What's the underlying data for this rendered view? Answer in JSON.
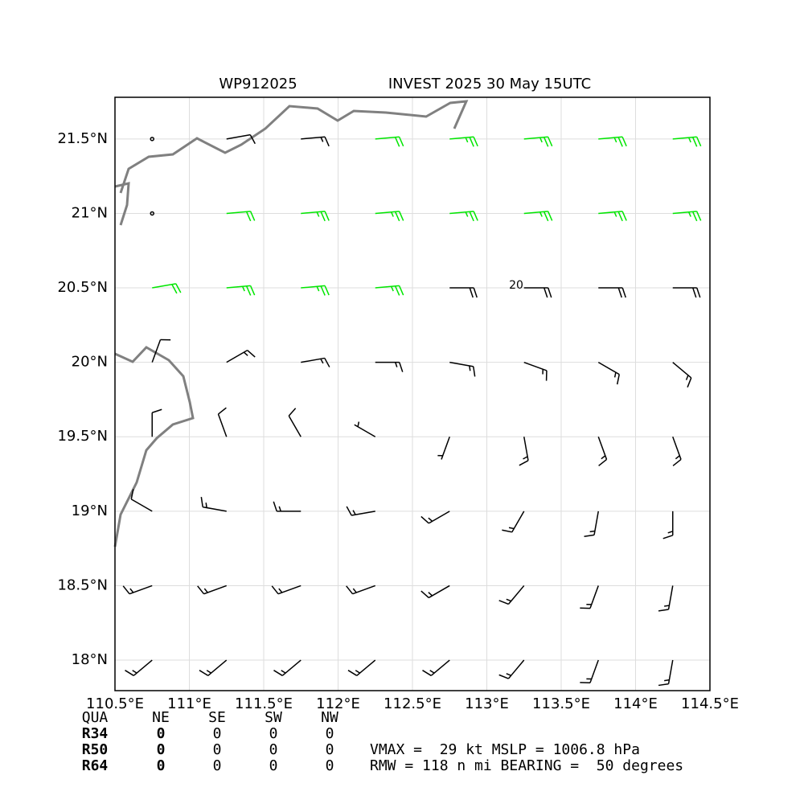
{
  "chart_data": {
    "type": "barbs",
    "storm_id": "WP912025",
    "title": "INVEST 2025 30 May 15UTC",
    "xlim": [
      110.5,
      114.5
    ],
    "ylim": [
      17.795,
      21.78
    ],
    "xticks": [
      {
        "value": 110.5,
        "label": "110.5°E"
      },
      {
        "value": 111,
        "label": "111°E"
      },
      {
        "value": 111.5,
        "label": "111.5°E"
      },
      {
        "value": 112,
        "label": "112°E"
      },
      {
        "value": 112.5,
        "label": "112.5°E"
      },
      {
        "value": 113,
        "label": "113°E"
      },
      {
        "value": 113.5,
        "label": "113.5°E"
      },
      {
        "value": 114,
        "label": "114°E"
      },
      {
        "value": 114.5,
        "label": "114.5°E"
      }
    ],
    "yticks": [
      {
        "value": 18,
        "label": "18°N"
      },
      {
        "value": 18.5,
        "label": "18.5°N"
      },
      {
        "value": 19,
        "label": "19°N"
      },
      {
        "value": 19.5,
        "label": "19.5°N"
      },
      {
        "value": 20,
        "label": "20°N"
      },
      {
        "value": 20.5,
        "label": "20.5°N"
      },
      {
        "value": 21,
        "label": "21°N"
      },
      {
        "value": 21.5,
        "label": "21.5°N"
      }
    ],
    "grid": true,
    "x": [
      110.75,
      111.25,
      111.75,
      112.25,
      112.75,
      113.25,
      113.75,
      114.25
    ],
    "y": [
      21.5,
      21.0,
      20.5,
      20.0,
      19.5,
      19.0,
      18.5,
      18.0
    ],
    "speed": [
      [
        0,
        10,
        15,
        20,
        25,
        25,
        25,
        25
      ],
      [
        0,
        20,
        25,
        25,
        25,
        25,
        25,
        25
      ],
      [
        20,
        25,
        25,
        25,
        18,
        18,
        18,
        18
      ],
      [
        10,
        15,
        15,
        15,
        15,
        15,
        15,
        15
      ],
      [
        10,
        10,
        10,
        5,
        5,
        15,
        15,
        15
      ],
      [
        10,
        15,
        15,
        15,
        15,
        15,
        15,
        15
      ],
      [
        15,
        15,
        15,
        15,
        15,
        15,
        15,
        15
      ],
      [
        15,
        15,
        15,
        15,
        15,
        15,
        15,
        15
      ]
    ],
    "direction": [
      [
        0,
        80,
        85,
        85,
        85,
        85,
        85,
        85
      ],
      [
        0,
        85,
        85,
        85,
        85,
        85,
        85,
        85
      ],
      [
        80,
        85,
        85,
        85,
        90,
        90,
        90,
        90
      ],
      [
        20,
        60,
        80,
        90,
        100,
        110,
        120,
        130
      ],
      [
        0,
        340,
        330,
        300,
        200,
        170,
        160,
        160
      ],
      [
        300,
        280,
        270,
        260,
        240,
        210,
        190,
        180
      ],
      [
        250,
        250,
        250,
        250,
        240,
        220,
        200,
        190
      ],
      [
        230,
        230,
        230,
        230,
        230,
        220,
        200,
        190
      ]
    ],
    "barb_color": "#000000",
    "strong_color": "#00e600",
    "contour_level": 20,
    "radii_table": {
      "columns": [
        "QUA",
        "NE",
        "SE",
        "SW",
        "NW"
      ],
      "rows": [
        {
          "label": "R34",
          "values": [
            0,
            0,
            0,
            0
          ]
        },
        {
          "label": "R50",
          "values": [
            0,
            0,
            0,
            0
          ]
        },
        {
          "label": "R64",
          "values": [
            0,
            0,
            0,
            0
          ]
        }
      ]
    },
    "notes": [
      "VMAX =  29 kt MSLP = 1006.8 hPa",
      "RMW = 118 n mi BEARING =  50 degrees"
    ]
  }
}
